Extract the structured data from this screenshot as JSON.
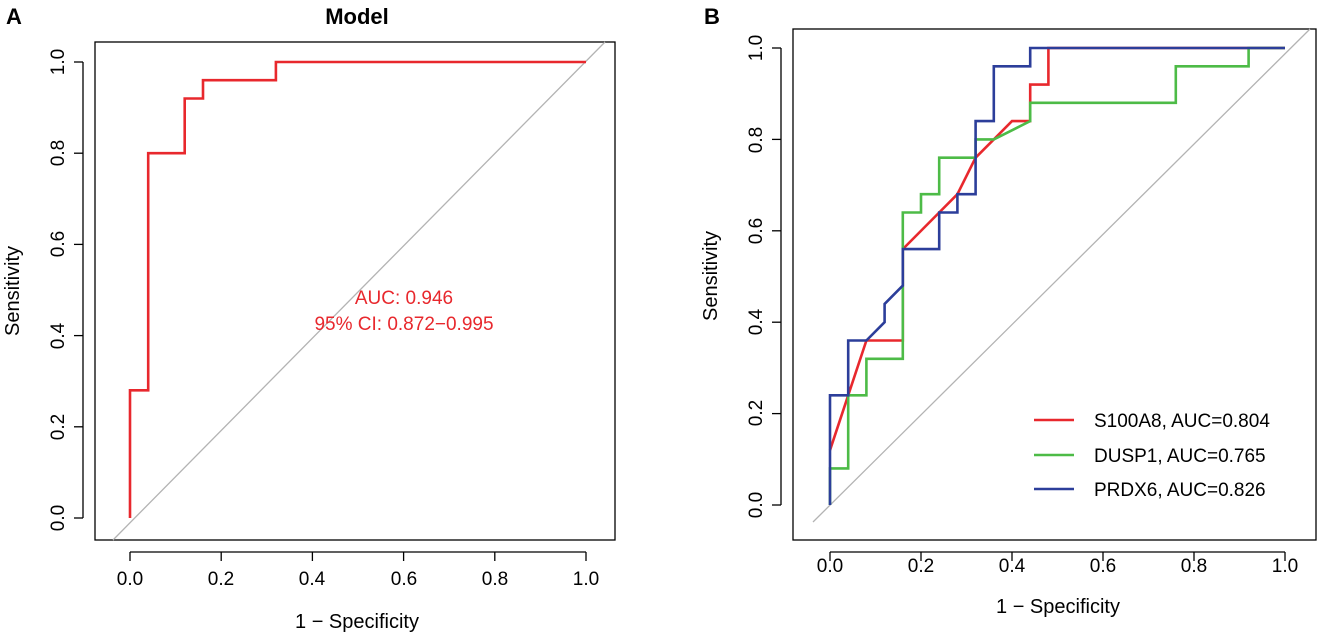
{
  "colors": {
    "red": "#e8282d",
    "green": "#4dbb47",
    "blue": "#2c3e9a",
    "diag": "#b3b3b3",
    "axis": "#000000"
  },
  "chart_data": [
    {
      "panel": "A",
      "type": "line",
      "title": "Model",
      "xlabel": "1 − Specificity",
      "ylabel": "Sensitivity",
      "xlim": [
        0,
        1
      ],
      "ylim": [
        0,
        1
      ],
      "xticks": [
        "0.0",
        "0.2",
        "0.4",
        "0.6",
        "0.8",
        "1.0"
      ],
      "yticks": [
        "0.0",
        "0.2",
        "0.4",
        "0.6",
        "0.8",
        "1.0"
      ],
      "annotation": {
        "line1": "AUC: 0.946",
        "line2": "95% CI: 0.872−0.995",
        "color": "red"
      },
      "series": [
        {
          "name": "Model",
          "color": "red",
          "x": [
            0,
            0,
            0.04,
            0.04,
            0.12,
            0.12,
            0.16,
            0.16,
            0.32,
            0.32,
            1.0
          ],
          "y": [
            0,
            0.28,
            0.28,
            0.8,
            0.8,
            0.92,
            0.92,
            0.96,
            0.96,
            1.0,
            1.0
          ]
        }
      ]
    },
    {
      "panel": "B",
      "type": "line",
      "title": "",
      "xlabel": "1 − Specificity",
      "ylabel": "Sensitivity",
      "xlim": [
        0,
        1
      ],
      "ylim": [
        0,
        1
      ],
      "xticks": [
        "0.0",
        "0.2",
        "0.4",
        "0.6",
        "0.8",
        "1.0"
      ],
      "yticks": [
        "0.0",
        "0.2",
        "0.4",
        "0.6",
        "0.8",
        "1.0"
      ],
      "legend": {
        "position": "bottom-right"
      },
      "series": [
        {
          "name": "S100A8, AUC=0.804",
          "color": "red",
          "x": [
            0,
            0,
            0.04,
            0.08,
            0.16,
            0.16,
            0.24,
            0.28,
            0.32,
            0.36,
            0.4,
            0.44,
            0.44,
            0.48,
            0.48,
            1.0
          ],
          "y": [
            0.12,
            0.12,
            0.24,
            0.36,
            0.36,
            0.56,
            0.64,
            0.68,
            0.76,
            0.8,
            0.84,
            0.84,
            0.92,
            0.92,
            1.0,
            1.0
          ]
        },
        {
          "name": "DUSP1, AUC=0.765",
          "color": "green",
          "x": [
            0,
            0,
            0.04,
            0.04,
            0.08,
            0.08,
            0.12,
            0.16,
            0.16,
            0.2,
            0.2,
            0.24,
            0.24,
            0.32,
            0.32,
            0.36,
            0.44,
            0.44,
            0.76,
            0.76,
            0.92,
            0.92,
            1.0
          ],
          "y": [
            0,
            0.08,
            0.08,
            0.24,
            0.24,
            0.32,
            0.32,
            0.32,
            0.64,
            0.64,
            0.68,
            0.68,
            0.76,
            0.76,
            0.8,
            0.8,
            0.84,
            0.88,
            0.88,
            0.96,
            0.96,
            1.0,
            1.0
          ]
        },
        {
          "name": "PRDX6, AUC=0.826",
          "color": "blue",
          "x": [
            0,
            0,
            0.04,
            0.04,
            0.08,
            0.08,
            0.12,
            0.12,
            0.16,
            0.16,
            0.24,
            0.24,
            0.28,
            0.28,
            0.32,
            0.32,
            0.36,
            0.36,
            0.44,
            0.44,
            1.0
          ],
          "y": [
            0,
            0.24,
            0.24,
            0.36,
            0.36,
            0.36,
            0.4,
            0.44,
            0.48,
            0.56,
            0.56,
            0.64,
            0.64,
            0.68,
            0.68,
            0.84,
            0.84,
            0.96,
            0.96,
            1.0,
            1.0
          ]
        }
      ]
    }
  ]
}
